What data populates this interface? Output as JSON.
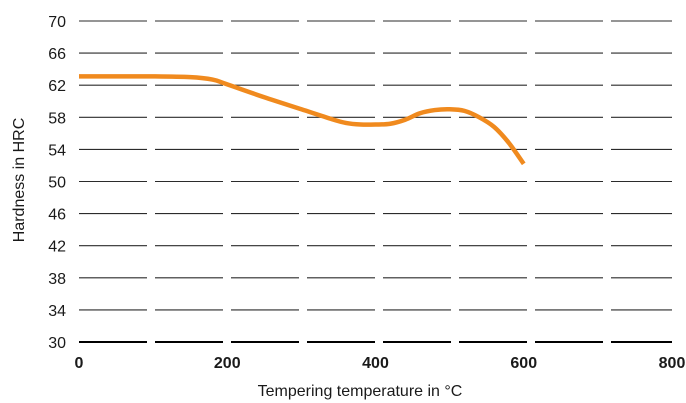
{
  "chart_data": {
    "type": "line",
    "title": "",
    "xlabel": "Tempering temperature in °C",
    "ylabel": "Hardness in HRC",
    "xlim": [
      0,
      800
    ],
    "ylim": [
      30,
      70
    ],
    "xticks": [
      0,
      200,
      400,
      600,
      800
    ],
    "yticks": [
      30,
      34,
      38,
      42,
      46,
      50,
      54,
      58,
      62,
      66,
      70
    ],
    "grid": "horizontal dashed",
    "legend": "none",
    "series": [
      {
        "color": "#f08a1e",
        "x": [
          0,
          50,
          100,
          150,
          180,
          200,
          250,
          300,
          340,
          360,
          380,
          400,
          420,
          440,
          460,
          480,
          500,
          520,
          540,
          560,
          580,
          600
        ],
        "y": [
          63.1,
          63.1,
          63.1,
          63.0,
          62.7,
          62.1,
          60.5,
          59.0,
          57.8,
          57.3,
          57.1,
          57.1,
          57.2,
          57.7,
          58.5,
          58.9,
          59.0,
          58.8,
          58.0,
          56.8,
          54.8,
          52.2
        ]
      }
    ]
  }
}
